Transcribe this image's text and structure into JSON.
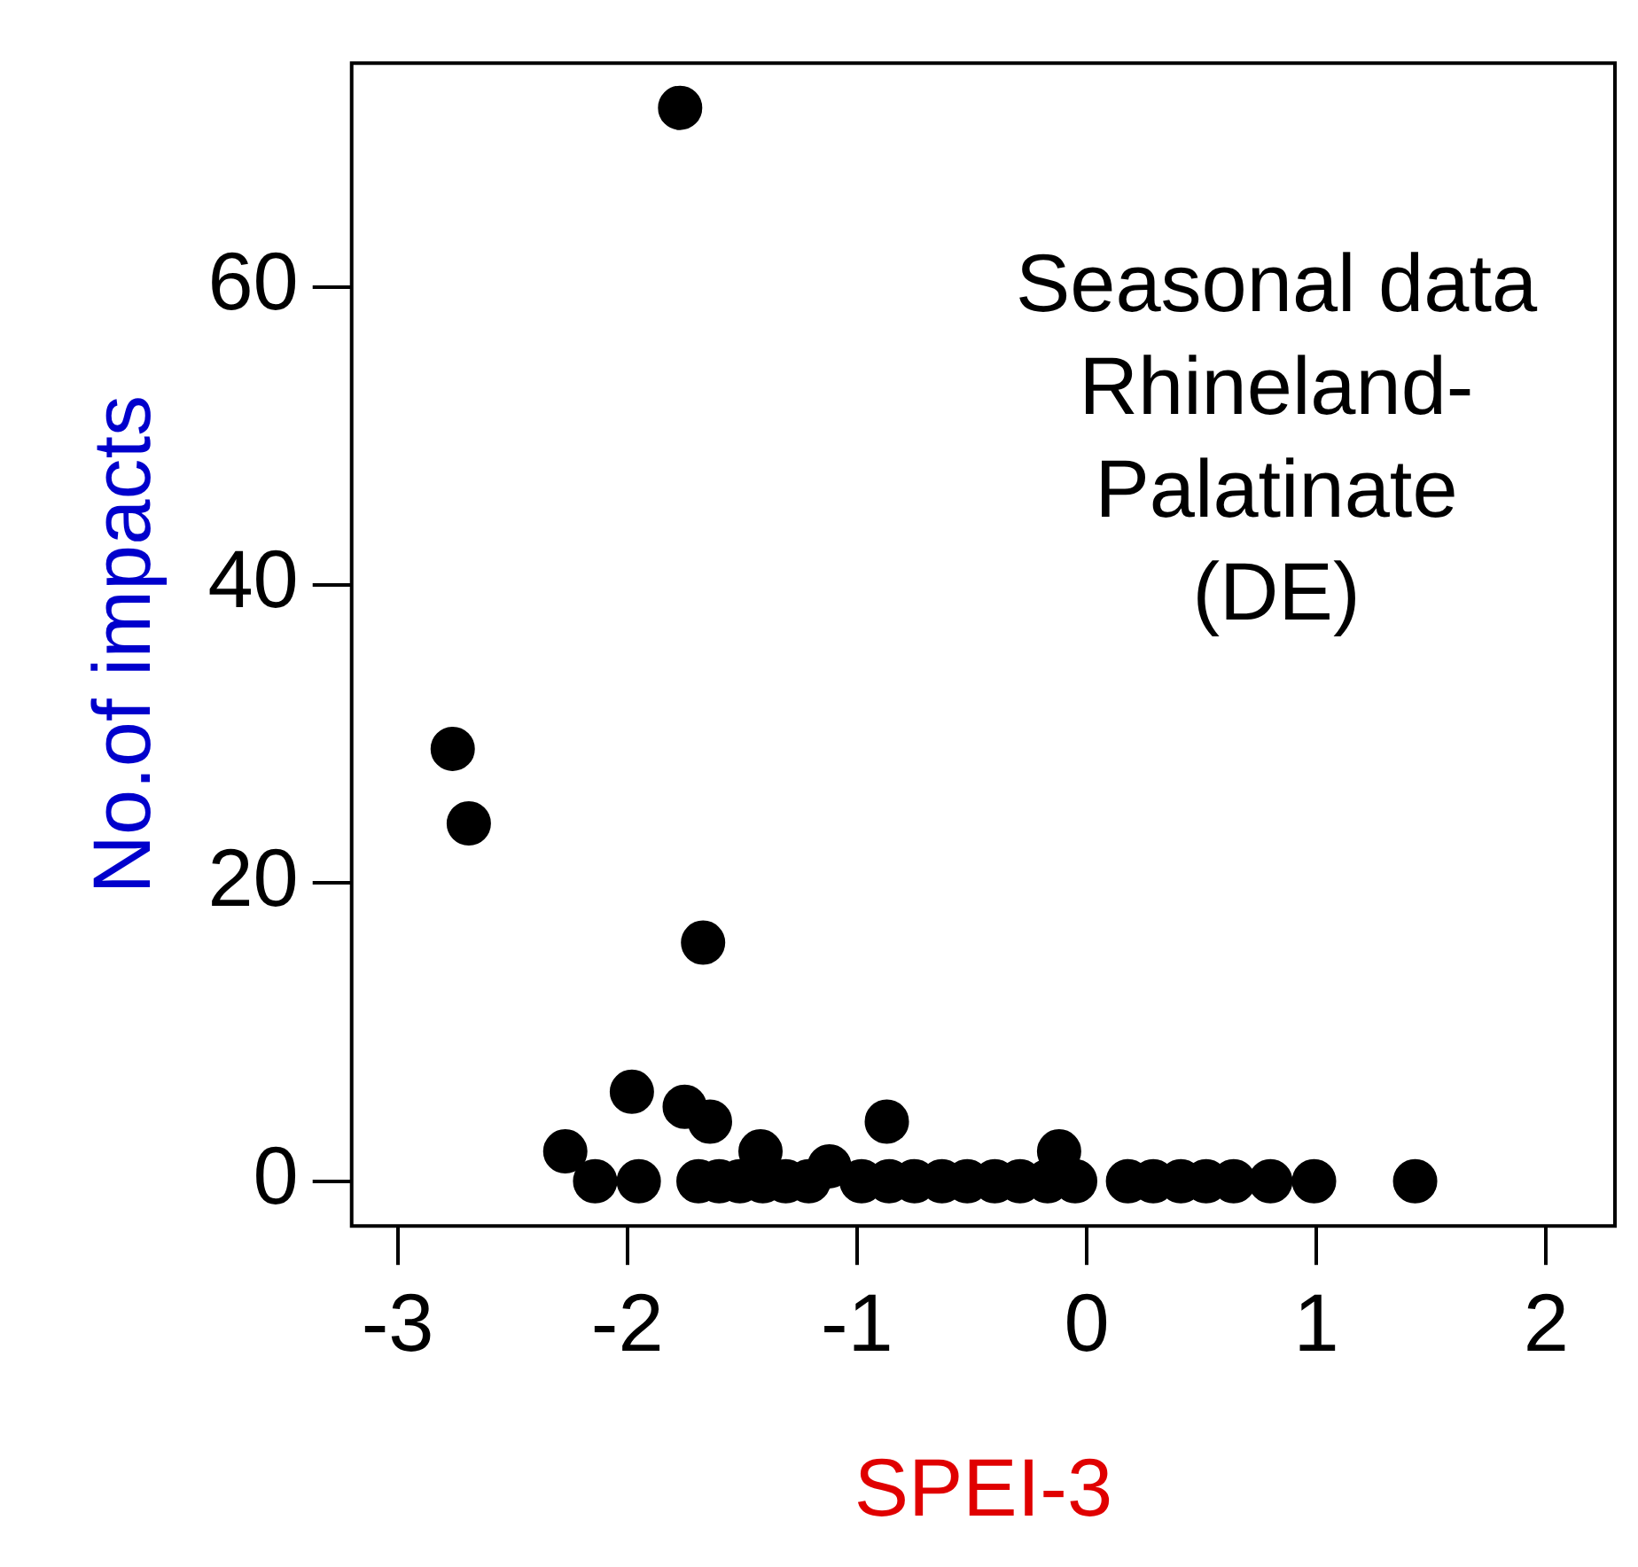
{
  "chart_data": {
    "type": "scatter",
    "xlabel": "SPEI-3",
    "ylabel": "No.of impacts",
    "x": [
      -1.77,
      -2.76,
      -2.69,
      -1.67,
      -1.98,
      -1.75,
      -1.64,
      -0.87,
      -2.27,
      -1.42,
      -0.12,
      -1.12,
      -2.14,
      -1.95,
      -1.69,
      -1.6,
      -1.51,
      -1.41,
      -1.31,
      -1.21,
      -0.98,
      -0.86,
      -0.75,
      -0.63,
      -0.52,
      -0.4,
      -0.29,
      -0.17,
      -0.05,
      0.18,
      0.29,
      0.41,
      0.52,
      0.64,
      0.8,
      0.99,
      1.43
    ],
    "values": [
      72,
      29,
      24,
      16,
      6,
      5,
      4,
      4,
      2,
      2,
      2,
      1,
      0,
      0,
      0,
      0,
      0,
      0,
      0,
      0,
      0,
      0,
      0,
      0,
      0,
      0,
      0,
      0,
      0,
      0,
      0,
      0,
      0,
      0,
      0,
      0,
      0
    ],
    "color": "#000000",
    "marker": "circle",
    "grid": false,
    "legend": false,
    "xlim": [
      -3.2,
      2.3
    ],
    "xticks": [
      -3,
      -2,
      -1,
      0,
      1,
      2
    ],
    "ylim": [
      -3,
      75
    ],
    "yticks": [
      0,
      20,
      40,
      60
    ],
    "annotations": [
      "Seasonal data\nRhineland-\nPalatinate\n(DE)"
    ]
  }
}
